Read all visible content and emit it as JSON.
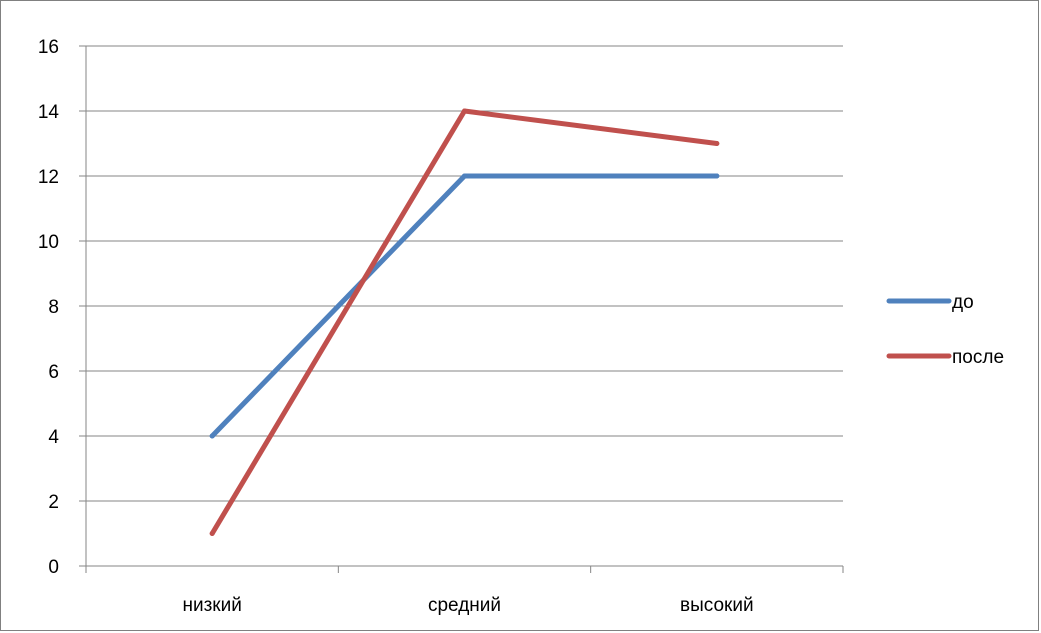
{
  "chart_data": {
    "type": "line",
    "title": "",
    "xlabel": "",
    "ylabel": "",
    "categories": [
      "низкий",
      "средний",
      "высокий"
    ],
    "series": [
      {
        "name": "до",
        "values": [
          4,
          12,
          12
        ],
        "color": "#4F81BD"
      },
      {
        "name": "после",
        "values": [
          1,
          14,
          13
        ],
        "color": "#C0504D"
      }
    ],
    "ylim": [
      0,
      16
    ],
    "yticks": [
      0,
      2,
      4,
      6,
      8,
      10,
      12,
      14,
      16
    ],
    "grid": true,
    "legend_position": "right"
  }
}
